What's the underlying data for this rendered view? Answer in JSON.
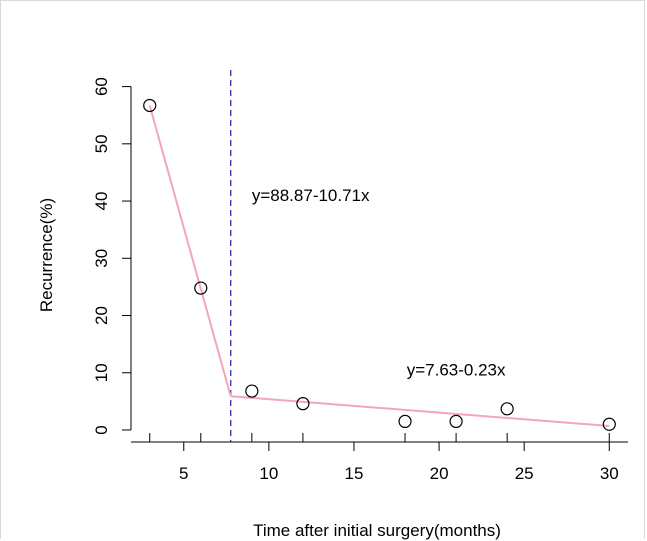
{
  "chart_data": {
    "type": "line",
    "title": "",
    "xlabel": "Time after initial surgery(months)",
    "ylabel": "Recurrence(%)",
    "xlim": [
      1.9,
      31.1
    ],
    "ylim": [
      -2.1,
      62.2
    ],
    "x_ticks": [
      5,
      10,
      15,
      20,
      25,
      30
    ],
    "x_tick_labels": [
      "5",
      "10",
      "15",
      "20",
      "25",
      "30"
    ],
    "y_ticks": [
      0,
      10,
      20,
      30,
      40,
      50,
      60
    ],
    "y_tick_labels": [
      "0",
      "10",
      "20",
      "30",
      "40",
      "50",
      "60"
    ],
    "x_minor_ticks": [
      3,
      6,
      9,
      12,
      18,
      21,
      24,
      30
    ],
    "points": {
      "x": [
        3,
        6,
        9,
        12,
        18,
        21,
        24,
        30
      ],
      "y": [
        56.7,
        24.8,
        6.8,
        4.6,
        1.5,
        1.5,
        3.7,
        1.0
      ]
    },
    "breakpoint_x": 7.76,
    "segments": [
      {
        "x": [
          3,
          7.76
        ],
        "y": [
          56.7,
          5.9
        ]
      },
      {
        "x": [
          7.76,
          30
        ],
        "y": [
          5.9,
          0.7
        ]
      }
    ],
    "annotations": [
      {
        "text": "y=88.87-10.71x",
        "x": 9.0,
        "y": 40
      },
      {
        "text": "y=7.63-0.23x",
        "x": 18.1,
        "y": 9.5
      }
    ],
    "colors": {
      "fit_line": "#f4a6b8",
      "breakpoint_line": "#1f1f9f",
      "points": "#000000"
    },
    "grid": false
  }
}
